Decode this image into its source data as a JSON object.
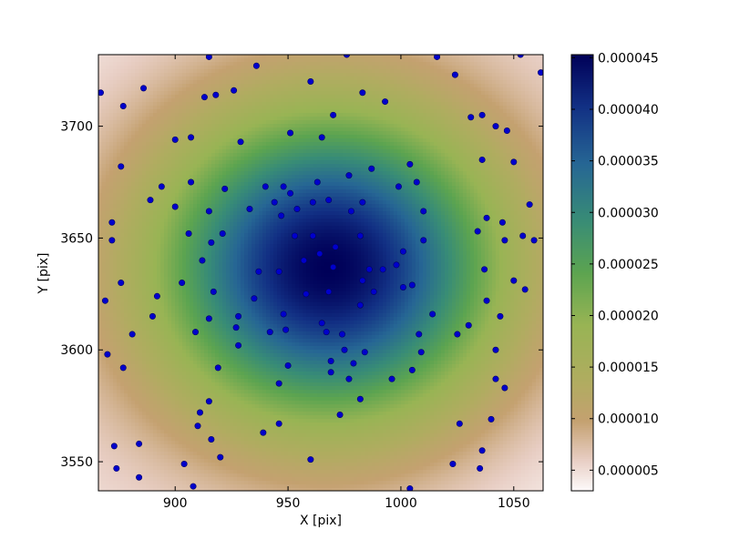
{
  "chart_data": {
    "type": "heatmap",
    "title": "",
    "xlabel": "X [pix]",
    "ylabel": "Y [pix]",
    "xlim": [
      866,
      1063
    ],
    "ylim": [
      3537,
      3732
    ],
    "x_ticks": [
      900,
      950,
      1000,
      1050
    ],
    "y_ticks": [
      3550,
      3600,
      3650,
      3700
    ],
    "x_tick_labels": [
      "900",
      "950",
      "1000",
      "1050"
    ],
    "y_tick_labels": [
      "3550",
      "3600",
      "3650",
      "3700"
    ],
    "colorbar": {
      "min": 3e-06,
      "max": 4.53e-05,
      "ticks": [
        5e-06,
        1e-05,
        1.5e-05,
        2e-05,
        2.5e-05,
        3e-05,
        3.5e-05,
        4e-05,
        4.5e-05
      ],
      "tick_labels": [
        "0.000005",
        "0.000010",
        "0.000015",
        "0.000020",
        "0.000025",
        "0.000030",
        "0.000035",
        "0.000040",
        "0.000045"
      ],
      "colormap": "gist_earth_r"
    },
    "field": {
      "peak_center": [
        968,
        3637
      ],
      "peak_value": 4.53e-05,
      "corner_values": {
        "bottom_left": 4.5e-06,
        "bottom_right": 3.5e-06,
        "top_left": 4e-06,
        "top_right": 4.5e-06
      }
    },
    "scatter_color": "#0000cc",
    "scatter_edge_color": "#000066",
    "points": [
      [
        867,
        3715
      ],
      [
        869,
        3622
      ],
      [
        870,
        3598
      ],
      [
        872,
        3657
      ],
      [
        872,
        3649
      ],
      [
        873,
        3557
      ],
      [
        874,
        3547
      ],
      [
        876,
        3630
      ],
      [
        876,
        3682
      ],
      [
        877,
        3709
      ],
      [
        877,
        3592
      ],
      [
        881,
        3607
      ],
      [
        884,
        3543
      ],
      [
        884,
        3558
      ],
      [
        886,
        3717
      ],
      [
        889,
        3667
      ],
      [
        890,
        3615
      ],
      [
        892,
        3624
      ],
      [
        894,
        3673
      ],
      [
        900,
        3694
      ],
      [
        900,
        3664
      ],
      [
        903,
        3630
      ],
      [
        904,
        3549
      ],
      [
        906,
        3652
      ],
      [
        907,
        3675
      ],
      [
        907,
        3695
      ],
      [
        908,
        3539
      ],
      [
        909,
        3608
      ],
      [
        910,
        3566
      ],
      [
        911,
        3572
      ],
      [
        912,
        3640
      ],
      [
        913,
        3713
      ],
      [
        915,
        3731
      ],
      [
        915,
        3614
      ],
      [
        915,
        3662
      ],
      [
        915,
        3577
      ],
      [
        916,
        3648
      ],
      [
        916,
        3560
      ],
      [
        917,
        3626
      ],
      [
        918,
        3714
      ],
      [
        919,
        3592
      ],
      [
        920,
        3552
      ],
      [
        921,
        3652
      ],
      [
        922,
        3672
      ],
      [
        926,
        3716
      ],
      [
        927,
        3610
      ],
      [
        928,
        3615
      ],
      [
        928,
        3602
      ],
      [
        929,
        3693
      ],
      [
        933,
        3663
      ],
      [
        935,
        3623
      ],
      [
        936,
        3727
      ],
      [
        937,
        3635
      ],
      [
        939,
        3563
      ],
      [
        940,
        3673
      ],
      [
        942,
        3608
      ],
      [
        944,
        3666
      ],
      [
        946,
        3585
      ],
      [
        946,
        3635
      ],
      [
        946,
        3567
      ],
      [
        947,
        3660
      ],
      [
        948,
        3673
      ],
      [
        948,
        3616
      ],
      [
        949,
        3609
      ],
      [
        950,
        3593
      ],
      [
        951,
        3670
      ],
      [
        951,
        3697
      ],
      [
        953,
        3651
      ],
      [
        954,
        3663
      ],
      [
        957,
        3640
      ],
      [
        958,
        3625
      ],
      [
        960,
        3720
      ],
      [
        960,
        3551
      ],
      [
        961,
        3666
      ],
      [
        961,
        3651
      ],
      [
        963,
        3675
      ],
      [
        964,
        3643
      ],
      [
        965,
        3612
      ],
      [
        965,
        3695
      ],
      [
        967,
        3608
      ],
      [
        968,
        3626
      ],
      [
        968,
        3667
      ],
      [
        969,
        3595
      ],
      [
        969,
        3590
      ],
      [
        970,
        3705
      ],
      [
        970,
        3637
      ],
      [
        971,
        3646
      ],
      [
        973,
        3571
      ],
      [
        974,
        3607
      ],
      [
        975,
        3600
      ],
      [
        976,
        3732
      ],
      [
        977,
        3678
      ],
      [
        977,
        3587
      ],
      [
        978,
        3662
      ],
      [
        979,
        3594
      ],
      [
        982,
        3620
      ],
      [
        982,
        3578
      ],
      [
        982,
        3651
      ],
      [
        983,
        3715
      ],
      [
        983,
        3631
      ],
      [
        983,
        3666
      ],
      [
        984,
        3599
      ],
      [
        986,
        3636
      ],
      [
        987,
        3681
      ],
      [
        988,
        3626
      ],
      [
        992,
        3636
      ],
      [
        993,
        3711
      ],
      [
        996,
        3587
      ],
      [
        998,
        3638
      ],
      [
        999,
        3673
      ],
      [
        1001,
        3644
      ],
      [
        1001,
        3628
      ],
      [
        1004,
        3683
      ],
      [
        1004,
        3538
      ],
      [
        1005,
        3629
      ],
      [
        1005,
        3591
      ],
      [
        1007,
        3675
      ],
      [
        1008,
        3607
      ],
      [
        1009,
        3599
      ],
      [
        1010,
        3662
      ],
      [
        1010,
        3649
      ],
      [
        1014,
        3616
      ],
      [
        1016,
        3731
      ],
      [
        1023,
        3549
      ],
      [
        1024,
        3723
      ],
      [
        1025,
        3607
      ],
      [
        1026,
        3567
      ],
      [
        1030,
        3611
      ],
      [
        1031,
        3704
      ],
      [
        1034,
        3653
      ],
      [
        1035,
        3547
      ],
      [
        1036,
        3555
      ],
      [
        1036,
        3685
      ],
      [
        1036,
        3705
      ],
      [
        1037,
        3636
      ],
      [
        1038,
        3659
      ],
      [
        1038,
        3622
      ],
      [
        1040,
        3569
      ],
      [
        1042,
        3587
      ],
      [
        1042,
        3600
      ],
      [
        1042,
        3700
      ],
      [
        1044,
        3615
      ],
      [
        1045,
        3657
      ],
      [
        1046,
        3649
      ],
      [
        1046,
        3583
      ],
      [
        1047,
        3698
      ],
      [
        1050,
        3631
      ],
      [
        1050,
        3684
      ],
      [
        1053,
        3732
      ],
      [
        1054,
        3651
      ],
      [
        1055,
        3627
      ],
      [
        1057,
        3665
      ],
      [
        1059,
        3649
      ],
      [
        1062,
        3724
      ]
    ]
  }
}
